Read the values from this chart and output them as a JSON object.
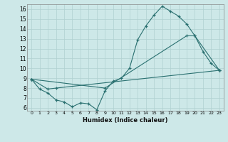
{
  "xlabel": "Humidex (Indice chaleur)",
  "xlim": [
    -0.5,
    23.5
  ],
  "ylim": [
    5.7,
    16.5
  ],
  "xticks": [
    0,
    1,
    2,
    3,
    4,
    5,
    6,
    7,
    8,
    9,
    10,
    11,
    12,
    13,
    14,
    15,
    16,
    17,
    18,
    19,
    20,
    21,
    22,
    23
  ],
  "yticks": [
    6,
    7,
    8,
    9,
    10,
    11,
    12,
    13,
    14,
    15,
    16
  ],
  "bg_color": "#cde8e8",
  "line_color": "#2a7070",
  "line1_x": [
    0,
    1,
    2,
    3,
    4,
    5,
    6,
    7,
    8,
    9,
    10,
    11,
    12,
    13,
    14,
    15,
    16,
    17,
    18,
    19,
    20,
    21,
    22,
    23
  ],
  "line1_y": [
    8.9,
    7.9,
    7.5,
    6.8,
    6.6,
    6.1,
    6.5,
    6.4,
    5.8,
    7.7,
    8.7,
    9.0,
    10.0,
    12.9,
    14.3,
    15.4,
    16.3,
    15.8,
    15.3,
    14.5,
    13.3,
    11.7,
    10.5,
    9.8
  ],
  "line2_x": [
    0,
    2,
    3,
    23
  ],
  "line2_y": [
    8.9,
    7.9,
    8.0,
    9.8
  ],
  "line3_x": [
    0,
    9,
    19,
    20,
    23
  ],
  "line3_y": [
    8.9,
    8.0,
    13.3,
    13.3,
    9.8
  ]
}
